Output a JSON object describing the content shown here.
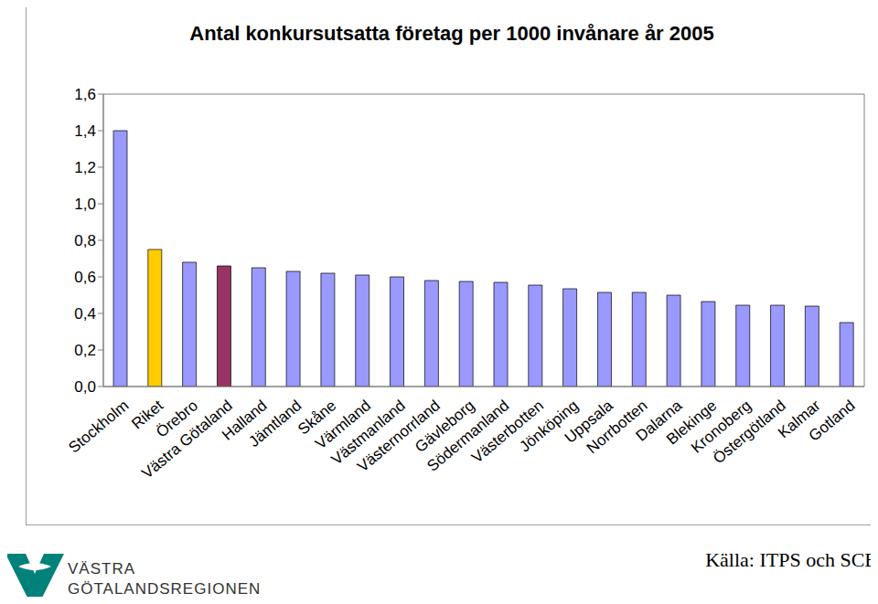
{
  "chart_data": {
    "type": "bar",
    "title": "Antal konkursutsatta företag per 1000 invånare år 2005",
    "categories": [
      "Stockholm",
      "Riket",
      "Örebro",
      "Västra Götaland",
      "Halland",
      "Jämtland",
      "Skåne",
      "Värmland",
      "Västmanland",
      "Västernorrland",
      "Gävleborg",
      "Södermanland",
      "Västerbotten",
      "Jönköping",
      "Uppsala",
      "Norrbotten",
      "Dalarna",
      "Blekinge",
      "Kronoberg",
      "Östergötland",
      "Kalmar",
      "Gotland"
    ],
    "values": [
      1.4,
      0.75,
      0.68,
      0.66,
      0.65,
      0.63,
      0.62,
      0.61,
      0.6,
      0.58,
      0.575,
      0.57,
      0.555,
      0.535,
      0.515,
      0.515,
      0.5,
      0.465,
      0.445,
      0.445,
      0.44,
      0.35
    ],
    "colors": [
      "#9999ff",
      "#ffcc00",
      "#9999ff",
      "#993366",
      "#9999ff",
      "#9999ff",
      "#9999ff",
      "#9999ff",
      "#9999ff",
      "#9999ff",
      "#9999ff",
      "#9999ff",
      "#9999ff",
      "#9999ff",
      "#9999ff",
      "#9999ff",
      "#9999ff",
      "#9999ff",
      "#9999ff",
      "#9999ff",
      "#9999ff",
      "#9999ff"
    ],
    "ylim": [
      0,
      1.6
    ],
    "yticks": [
      {
        "value": 0,
        "label": "0,0"
      },
      {
        "value": 0.2,
        "label": "0,2"
      },
      {
        "value": 0.4,
        "label": "0,4"
      },
      {
        "value": 0.6,
        "label": "0,6"
      },
      {
        "value": 0.8,
        "label": "0,8"
      },
      {
        "value": 1.0,
        "label": "1,0"
      },
      {
        "value": 1.2,
        "label": "1,2"
      },
      {
        "value": 1.4,
        "label": "1,4"
      },
      {
        "value": 1.6,
        "label": "1,6"
      }
    ],
    "grid": false,
    "source": "Källa: ITPS och SCB",
    "logo": [
      "VÄSTRA",
      "GÖTALANDSREGIONEN"
    ]
  }
}
